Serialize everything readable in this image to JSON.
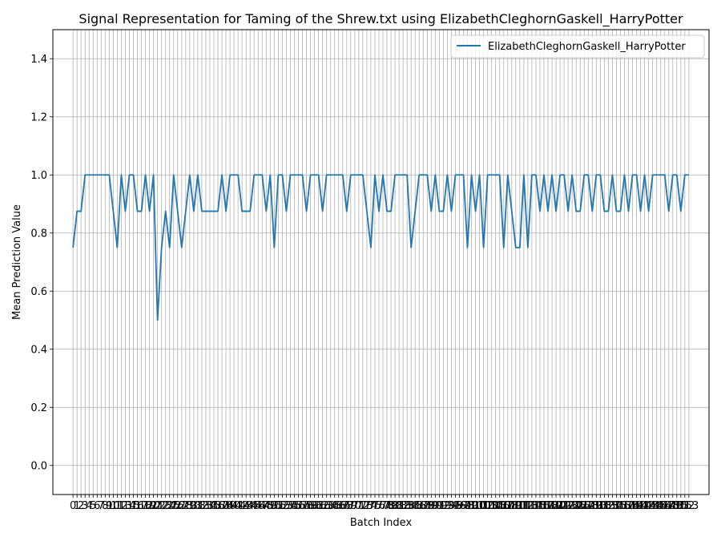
{
  "chart_data": {
    "type": "line",
    "title": "Signal Representation for Taming of the Shrew.txt using ElizabethCleghornGaskell_HarryPotter",
    "xlabel": "Batch Index",
    "ylabel": "Mean Prediction Value",
    "xlim": [
      -5,
      158
    ],
    "ylim": [
      -0.1,
      1.5
    ],
    "yticks": [
      "0.0",
      "0.2",
      "0.4",
      "0.6",
      "0.8",
      "1.0",
      "1.2",
      "1.4"
    ],
    "grid": true,
    "legend_position": "top-right",
    "series": [
      {
        "name": "ElizabethCleghornGaskell_HarryPotter",
        "color": "#1f77b4",
        "x": [
          0,
          1,
          2,
          3,
          4,
          5,
          6,
          7,
          8,
          9,
          10,
          11,
          12,
          13,
          14,
          15,
          16,
          17,
          18,
          19,
          20,
          21,
          22,
          23,
          24,
          25,
          26,
          27,
          28,
          29,
          30,
          31,
          32,
          33,
          34,
          35,
          36,
          37,
          38,
          39,
          40,
          41,
          42,
          43,
          44,
          45,
          46,
          47,
          48,
          49,
          50,
          51,
          52,
          53,
          54,
          55,
          56,
          57,
          58,
          59,
          60,
          61,
          62,
          63,
          64,
          65,
          66,
          67,
          68,
          69,
          70,
          71,
          72,
          73,
          74,
          75,
          76,
          77,
          78,
          79,
          80,
          81,
          82,
          83,
          84,
          85,
          86,
          87,
          88,
          89,
          90,
          91,
          92,
          93,
          94,
          95,
          96,
          97,
          98,
          99,
          100,
          101,
          102,
          103,
          104,
          105,
          106,
          107,
          108,
          109,
          110,
          111,
          112,
          113,
          114,
          115,
          116,
          117,
          118,
          119,
          120,
          121,
          122,
          123,
          124,
          125,
          126,
          127,
          128,
          129,
          130,
          131,
          132,
          133,
          134,
          135,
          136,
          137,
          138,
          139,
          140,
          141,
          142,
          143,
          144,
          145,
          146,
          147,
          148,
          149,
          150,
          151,
          152,
          153
        ],
        "values": [
          0.75,
          0.875,
          0.875,
          1,
          1,
          1,
          1,
          1,
          1,
          1,
          0.875,
          0.75,
          1,
          0.875,
          1,
          1,
          0.875,
          0.875,
          1,
          0.875,
          1,
          0.5,
          0.75,
          0.875,
          0.75,
          1,
          0.875,
          0.75,
          0.875,
          1,
          0.875,
          1,
          0.875,
          0.875,
          0.875,
          0.875,
          0.875,
          1,
          0.875,
          1,
          1,
          1,
          0.875,
          0.875,
          0.875,
          1,
          1,
          1,
          0.875,
          1,
          0.75,
          1,
          1,
          0.875,
          1,
          1,
          1,
          1,
          0.875,
          1,
          1,
          1,
          0.875,
          1,
          1,
          1,
          1,
          1,
          0.875,
          1,
          1,
          1,
          1,
          0.875,
          0.75,
          1,
          0.875,
          1,
          0.875,
          0.875,
          1,
          1,
          1,
          1,
          0.75,
          0.875,
          1,
          1,
          1,
          0.875,
          1,
          0.875,
          0.875,
          1,
          0.875,
          1,
          1,
          1,
          0.75,
          1,
          0.875,
          1,
          0.75,
          1,
          1,
          1,
          1,
          0.75,
          1,
          0.875,
          0.75,
          0.75,
          1,
          0.75,
          1,
          1,
          0.875,
          1,
          0.875,
          1,
          0.875,
          1,
          1,
          0.875,
          1,
          0.875,
          0.875,
          1,
          1,
          0.875,
          1,
          1,
          0.875,
          0.875,
          1,
          0.875,
          0.875,
          1,
          0.875,
          1,
          1,
          0.875,
          1,
          0.875,
          1,
          1,
          1,
          1,
          0.875,
          1,
          1,
          0.875,
          1,
          1
        ]
      }
    ]
  }
}
